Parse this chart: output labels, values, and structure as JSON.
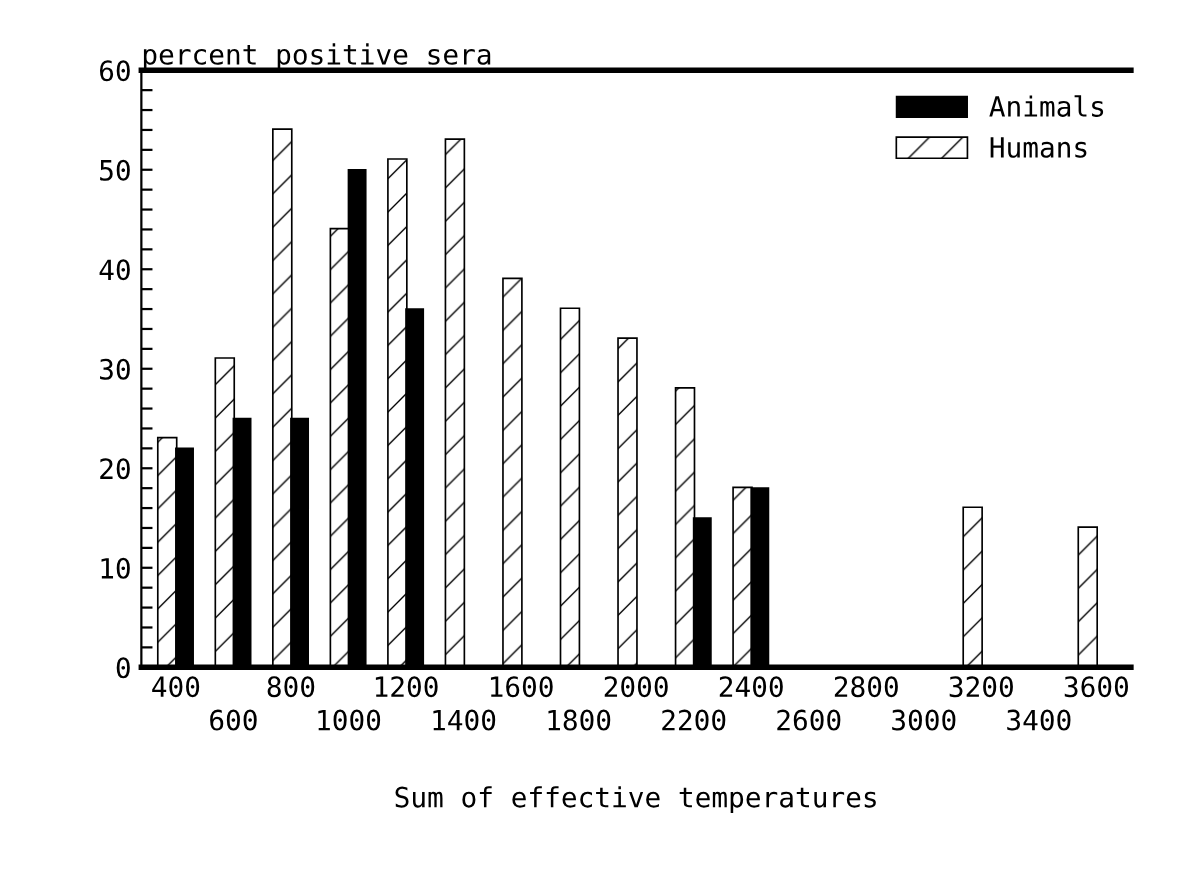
{
  "chart_data": {
    "type": "bar",
    "ylabel": "percent positive sera",
    "xlabel": "Sum of effective temperatures",
    "categories": [
      "400",
      "600",
      "800",
      "1000",
      "1200",
      "1400",
      "1600",
      "1800",
      "2000",
      "2200",
      "2400",
      "2600",
      "2800",
      "3000",
      "3200",
      "3400",
      "3600"
    ],
    "series": [
      {
        "name": "Humans",
        "color": "#ffffff",
        "values": [
          23,
          31,
          54,
          44,
          51,
          53,
          39,
          36,
          33,
          28,
          18,
          null,
          null,
          null,
          16,
          null,
          14
        ]
      },
      {
        "name": "Animals",
        "color": "#000000",
        "values": [
          22,
          25,
          25,
          50,
          36,
          null,
          null,
          null,
          null,
          15,
          18,
          null,
          null,
          null,
          null,
          null,
          null
        ]
      }
    ],
    "ylim": [
      0,
      60
    ],
    "yticks": [
      0,
      {
        "value": 2,
        "label": null
      },
      {
        "value": 4,
        "label": null
      },
      {
        "value": 6,
        "label": null
      },
      {
        "value": 8,
        "label": null
      },
      10,
      {
        "value": 12,
        "label": null
      },
      {
        "value": 14,
        "label": null
      },
      {
        "value": 16,
        "label": null
      },
      {
        "value": 18,
        "label": null
      },
      20,
      {
        "value": 22,
        "label": null
      },
      {
        "value": 24,
        "label": null
      },
      {
        "value": 26,
        "label": null
      },
      {
        "value": 28,
        "label": null
      },
      30,
      {
        "value": 32,
        "label": null
      },
      {
        "value": 34,
        "label": null
      },
      {
        "value": 36,
        "label": null
      },
      {
        "value": 38,
        "label": null
      },
      40,
      {
        "value": 42,
        "label": null
      },
      {
        "value": 44,
        "label": null
      },
      {
        "value": 46,
        "label": null
      },
      {
        "value": 48,
        "label": null
      },
      50,
      {
        "value": 52,
        "label": null
      },
      {
        "value": 54,
        "label": null
      },
      {
        "value": 56,
        "label": null
      },
      {
        "value": 58,
        "label": null
      },
      60
    ],
    "grid": false,
    "legend": "top right"
  }
}
